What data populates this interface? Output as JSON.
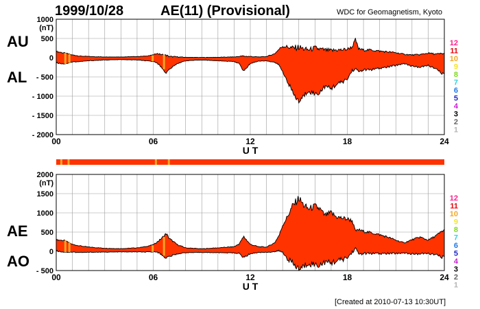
{
  "header": {
    "date": "1999/10/28",
    "title": "AE(11) (Provisional)",
    "source": "WDC for Geomagnetism, Kyoto",
    "created": "[Created at 2010-07-13 10:30UT]"
  },
  "colors": {
    "fill": "#ff3300",
    "gap": "#f5a623",
    "grid": "#9a9a9a",
    "scale": [
      "#ff1e8c",
      "#e8000b",
      "#f5a623",
      "#f5e61e",
      "#7fd81e",
      "#32d2dc",
      "#1e78e6",
      "#1e28c8",
      "#c81ed2",
      "#000000",
      "#646464",
      "#b4b4b4"
    ]
  },
  "station_scale": [
    "12",
    "11",
    "10",
    "9",
    "8",
    "7",
    "6",
    "5",
    "4",
    "3",
    "2",
    "1"
  ],
  "chart_data": [
    {
      "id": "upper",
      "type": "area",
      "ylabels_left": [
        "AU",
        "AL"
      ],
      "unit": "(nT)",
      "xlabel": "U T",
      "xlim": [
        0,
        24
      ],
      "ylim": [
        -2000,
        1000
      ],
      "yticks": [
        1000,
        500,
        0,
        -500,
        -1000,
        -1500,
        -2000
      ],
      "xticks": [
        "00",
        "06",
        "12",
        "18",
        "24"
      ],
      "grid": true,
      "series": [
        {
          "name": "AU",
          "x": [
            0,
            0.5,
            1,
            1.5,
            2,
            3,
            4,
            5,
            5.5,
            6,
            6.2,
            6.5,
            6.8,
            7,
            7.5,
            8,
            9,
            10,
            11,
            11.5,
            12,
            12.5,
            13,
            13.5,
            13.8,
            14,
            14.3,
            14.6,
            15,
            15.3,
            15.6,
            16,
            16.3,
            16.6,
            17,
            17.3,
            17.6,
            18,
            18.3,
            18.5,
            18.7,
            19,
            19.5,
            20,
            20.5,
            21,
            21.5,
            22,
            22.5,
            23,
            23.5,
            24
          ],
          "y": [
            160,
            120,
            70,
            40,
            30,
            20,
            20,
            30,
            40,
            70,
            110,
            80,
            60,
            30,
            20,
            10,
            5,
            10,
            20,
            40,
            30,
            20,
            30,
            100,
            230,
            300,
            280,
            250,
            270,
            230,
            200,
            250,
            220,
            200,
            180,
            200,
            200,
            220,
            280,
            470,
            230,
            200,
            200,
            170,
            150,
            130,
            90,
            70,
            80,
            120,
            90,
            110
          ]
        },
        {
          "name": "AL",
          "x": [
            0,
            0.5,
            1,
            1.5,
            2,
            3,
            4,
            5,
            5.5,
            6,
            6.2,
            6.5,
            6.8,
            7,
            7.5,
            8,
            9,
            10,
            11,
            11.3,
            11.6,
            12,
            12.5,
            13,
            13.5,
            13.8,
            14,
            14.3,
            14.6,
            15,
            15.3,
            15.6,
            16,
            16.3,
            16.6,
            17,
            17.3,
            17.6,
            18,
            18.3,
            18.5,
            18.7,
            19,
            19.5,
            20,
            20.5,
            21,
            21.5,
            22,
            22.5,
            23,
            23.5,
            24
          ],
          "y": [
            -130,
            -160,
            -110,
            -100,
            -80,
            -60,
            -50,
            -60,
            -80,
            -100,
            -120,
            -250,
            -400,
            -300,
            -150,
            -80,
            -60,
            -80,
            -100,
            -150,
            -350,
            -150,
            -90,
            -80,
            -120,
            -200,
            -380,
            -600,
            -900,
            -1150,
            -1000,
            -850,
            -950,
            -900,
            -750,
            -800,
            -700,
            -650,
            -560,
            -330,
            -300,
            -360,
            -320,
            -310,
            -280,
            -240,
            -200,
            -150,
            -220,
            -250,
            -200,
            -300,
            -450
          ]
        }
      ]
    },
    {
      "id": "lower",
      "type": "area",
      "ylabels_left": [
        "AE",
        "AO"
      ],
      "unit": "(nT)",
      "xlabel": "U T",
      "xlim": [
        0,
        24
      ],
      "ylim": [
        -500,
        2000
      ],
      "yticks": [
        2000,
        1500,
        1000,
        500,
        0,
        -500
      ],
      "xticks": [
        "00",
        "06",
        "12",
        "18",
        "24"
      ],
      "grid": true,
      "series": [
        {
          "name": "AE",
          "x": [
            0,
            0.5,
            1,
            1.5,
            2,
            3,
            4,
            5,
            5.5,
            6,
            6.2,
            6.5,
            6.8,
            7,
            7.5,
            8,
            9,
            10,
            11,
            11.3,
            11.6,
            12,
            12.5,
            13,
            13.5,
            13.8,
            14,
            14.3,
            14.6,
            15,
            15.3,
            15.6,
            16,
            16.3,
            16.6,
            17,
            17.3,
            17.6,
            18,
            18.3,
            18.5,
            18.7,
            19,
            19.5,
            20,
            20.5,
            21,
            21.5,
            22,
            22.5,
            23,
            23.5,
            24
          ],
          "y": [
            300,
            280,
            180,
            140,
            110,
            80,
            70,
            90,
            120,
            170,
            230,
            330,
            460,
            330,
            170,
            90,
            65,
            90,
            120,
            190,
            380,
            180,
            120,
            110,
            220,
            430,
            680,
            900,
            1170,
            1380,
            1200,
            1100,
            1170,
            1100,
            930,
            1000,
            900,
            870,
            840,
            800,
            530,
            560,
            520,
            480,
            430,
            370,
            290,
            220,
            300,
            370,
            290,
            410,
            560
          ]
        },
        {
          "name": "AO",
          "x": [
            0,
            0.5,
            1,
            1.5,
            2,
            3,
            4,
            5,
            5.5,
            6,
            6.2,
            6.5,
            6.8,
            7,
            7.5,
            8,
            9,
            10,
            11,
            11.3,
            11.6,
            12,
            12.5,
            13,
            13.5,
            13.8,
            14,
            14.3,
            14.6,
            15,
            15.3,
            15.6,
            16,
            16.3,
            16.6,
            17,
            17.3,
            17.6,
            18,
            18.3,
            18.5,
            18.7,
            19,
            19.5,
            20,
            20.5,
            21,
            21.5,
            22,
            22.5,
            23,
            23.5,
            24
          ],
          "y": [
            15,
            -20,
            -20,
            -30,
            -25,
            -20,
            -15,
            -15,
            -20,
            -15,
            -5,
            -85,
            -170,
            -135,
            -65,
            -35,
            -28,
            -35,
            -40,
            -55,
            -160,
            -60,
            -30,
            -25,
            -10,
            15,
            -40,
            -175,
            -315,
            -460,
            -400,
            -300,
            -350,
            -350,
            -285,
            -300,
            -250,
            -225,
            -170,
            -25,
            85,
            -65,
            -60,
            -55,
            -65,
            -55,
            -55,
            -40,
            -70,
            -65,
            -55,
            -95,
            -170
          ]
        }
      ]
    }
  ]
}
